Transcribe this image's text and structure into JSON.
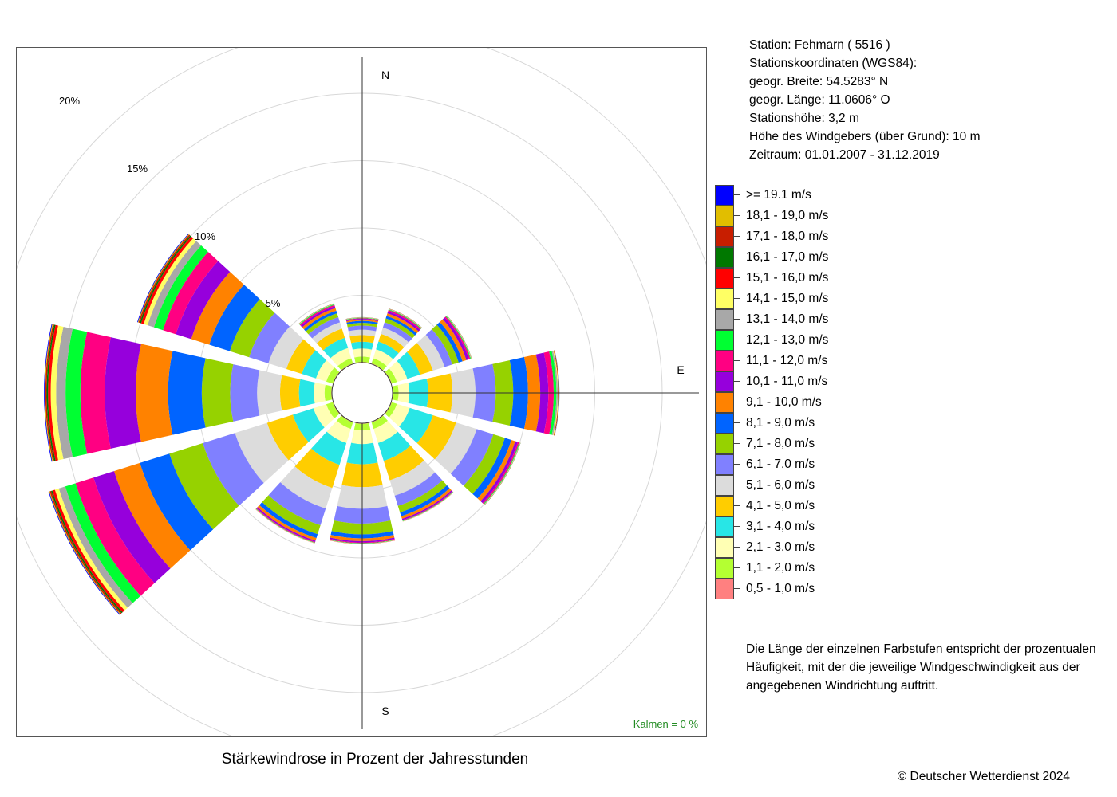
{
  "station": {
    "line1": "Station:  Fehmarn  ( 5516 )",
    "line2": "Stationskoordinaten (WGS84):",
    "line3": "geogr. Breite: 54.5283° N",
    "line4": "geogr. Länge: 11.0606° O",
    "line5": "Stationshöhe: 3,2 m",
    "line6": "Höhe des Windgebers (über Grund): 10 m",
    "line7": "Zeitraum: 01.01.2007 - 31.12.2019"
  },
  "note": "Die Länge der einzelnen Farbstufen entspricht der prozentualen Häufigkeit, mit der die jeweilige Windgeschwindigkeit aus der angegebenen Windrichtung auftritt.",
  "copyright": "© Deutscher Wetterdienst  2024",
  "chart_data": {
    "type": "wind-rose",
    "title": "Stärkewindrose in Prozent der Jahresstunden",
    "calm_label": "Kalmen  =  0 %",
    "direction_labels": [
      "N",
      "E",
      "S"
    ],
    "ring_labels": [
      "5%",
      "10%",
      "15%",
      "20%"
    ],
    "ring_values": [
      5,
      10,
      15,
      20,
      25
    ],
    "sector_width_deg": 25,
    "directions_deg": [
      0,
      30,
      60,
      90,
      120,
      150,
      180,
      210,
      240,
      270,
      300,
      330
    ],
    "speed_classes": [
      {
        "label": "0,5 - 1,0 m/s",
        "color": "#ff8080"
      },
      {
        "label": "1,1 - 2,0 m/s",
        "color": "#b4ff32"
      },
      {
        "label": "2,1 - 3,0 m/s",
        "color": "#ffffb4"
      },
      {
        "label": "3,1 - 4,0 m/s",
        "color": "#28e6e6"
      },
      {
        "label": "4,1 - 5,0 m/s",
        "color": "#ffcd00"
      },
      {
        "label": "5,1 - 6,0 m/s",
        "color": "#dcdcdc"
      },
      {
        "label": "6,1 - 7,0 m/s",
        "color": "#8080ff"
      },
      {
        "label": "7,1 - 8,0 m/s",
        "color": "#96d200"
      },
      {
        "label": "8,1 - 9,0 m/s",
        "color": "#0064ff"
      },
      {
        "label": "9,1 - 10,0 m/s",
        "color": "#ff8200"
      },
      {
        "label": "10,1 - 11,0 m/s",
        "color": "#9600dc"
      },
      {
        "label": "11,1 - 12,0 m/s",
        "color": "#ff0082"
      },
      {
        "label": "12,1 - 13,0 m/s",
        "color": "#00ff32"
      },
      {
        "label": "13,1 - 14,0 m/s",
        "color": "#a8a8a8"
      },
      {
        "label": "14,1 - 15,0 m/s",
        "color": "#ffff64"
      },
      {
        "label": "15,1 - 16,0 m/s",
        "color": "#ff0000"
      },
      {
        "label": "16,1 - 17,0 m/s",
        "color": "#007800"
      },
      {
        "label": "17,1 - 18,0 m/s",
        "color": "#c81e00"
      },
      {
        "label": "18,1 - 19,0 m/s",
        "color": "#e1be00"
      },
      {
        "label": ">= 19.1 m/s",
        "color": "#0000ff"
      }
    ],
    "series": [
      {
        "dir": 0,
        "values": [
          0.05,
          0.4,
          0.6,
          0.5,
          0.5,
          0.4,
          0.3,
          0.2,
          0.15,
          0.1,
          0.05,
          0.05,
          0.03,
          0.02,
          0.01,
          0.01,
          0.01,
          0,
          0,
          0
        ]
      },
      {
        "dir": 30,
        "values": [
          0.05,
          0.4,
          0.7,
          0.6,
          0.6,
          0.5,
          0.4,
          0.3,
          0.2,
          0.2,
          0.15,
          0.1,
          0.05,
          0.03,
          0.02,
          0.01,
          0.01,
          0,
          0,
          0
        ]
      },
      {
        "dir": 60,
        "values": [
          0.05,
          0.4,
          0.8,
          1.0,
          1.0,
          0.9,
          0.6,
          0.5,
          0.3,
          0.3,
          0.2,
          0.1,
          0.05,
          0.03,
          0.02,
          0.01,
          0.01,
          0,
          0,
          0
        ]
      },
      {
        "dir": 90,
        "values": [
          0.05,
          0.4,
          0.8,
          1.4,
          1.8,
          1.7,
          1.5,
          1.3,
          1.1,
          0.9,
          0.6,
          0.4,
          0.2,
          0.1,
          0.05,
          0.03,
          0.02,
          0.01,
          0.01,
          0.01
        ]
      },
      {
        "dir": 120,
        "values": [
          0.05,
          0.4,
          1.0,
          1.8,
          1.8,
          1.6,
          1.3,
          0.9,
          0.5,
          0.3,
          0.2,
          0.1,
          0.05,
          0.03,
          0.02,
          0.01,
          0.01,
          0,
          0,
          0
        ]
      },
      {
        "dir": 150,
        "values": [
          0.05,
          0.5,
          1.1,
          1.4,
          1.5,
          1.2,
          0.8,
          0.5,
          0.3,
          0.2,
          0.1,
          0.05,
          0.03,
          0.02,
          0.01,
          0.01,
          0,
          0,
          0,
          0
        ]
      },
      {
        "dir": 180,
        "values": [
          0.05,
          0.5,
          1.0,
          1.5,
          1.7,
          1.6,
          1.1,
          0.8,
          0.3,
          0.2,
          0.1,
          0.05,
          0.03,
          0.02,
          0.01,
          0.01,
          0,
          0,
          0,
          0
        ]
      },
      {
        "dir": 210,
        "values": [
          0.05,
          0.5,
          1.1,
          1.7,
          1.8,
          1.6,
          1.3,
          0.7,
          0.3,
          0.2,
          0.1,
          0.05,
          0.03,
          0.02,
          0.01,
          0.01,
          0,
          0,
          0,
          0
        ]
      },
      {
        "dir": 240,
        "values": [
          0.05,
          0.5,
          1.0,
          1.6,
          2.0,
          2.5,
          2.5,
          2.6,
          2.3,
          2.0,
          1.6,
          1.4,
          0.8,
          0.5,
          0.3,
          0.2,
          0.1,
          0.1,
          0.05,
          0.05
        ]
      },
      {
        "dir": 270,
        "values": [
          0.05,
          0.5,
          0.8,
          1.1,
          1.4,
          1.7,
          2.0,
          2.1,
          2.5,
          2.4,
          2.3,
          1.8,
          1.1,
          0.7,
          0.4,
          0.2,
          0.1,
          0.1,
          0.05,
          0.05
        ]
      },
      {
        "dir": 300,
        "values": [
          0.05,
          0.5,
          0.8,
          1.1,
          1.2,
          1.4,
          1.5,
          1.5,
          1.6,
          1.4,
          1.2,
          1.0,
          0.7,
          0.5,
          0.3,
          0.2,
          0.1,
          0.1,
          0.05,
          0.05
        ]
      },
      {
        "dir": 330,
        "values": [
          0.05,
          0.4,
          0.8,
          0.8,
          0.7,
          0.5,
          0.4,
          0.3,
          0.2,
          0.2,
          0.15,
          0.1,
          0.05,
          0.03,
          0.02,
          0.01,
          0.01,
          0,
          0,
          0
        ]
      }
    ]
  }
}
